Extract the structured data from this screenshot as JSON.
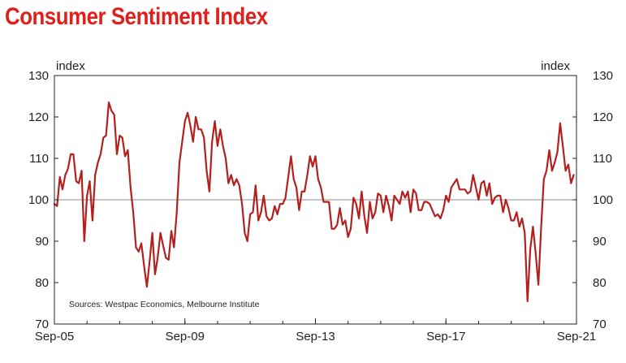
{
  "title": "Consumer Sentiment Index",
  "colors": {
    "title": "#e0201b",
    "line": "#b3201e",
    "refline": "#8c8c8c",
    "axis": "#222222"
  },
  "chart_data": {
    "type": "line",
    "title": "Consumer Sentiment Index",
    "ylabel_left": "index",
    "ylabel_right": "index",
    "ylim": [
      70,
      130
    ],
    "yticks": [
      70,
      80,
      90,
      100,
      110,
      120,
      130
    ],
    "xlim": [
      2005.667,
      2021.667
    ],
    "xticks": [
      {
        "label": "Sep-05",
        "x": 2005.667
      },
      {
        "label": "Sep-09",
        "x": 2009.667
      },
      {
        "label": "Sep-13",
        "x": 2013.667
      },
      {
        "label": "Sep-17",
        "x": 2017.667
      },
      {
        "label": "Sep-21",
        "x": 2021.667
      }
    ],
    "reference_line": 100,
    "source": "Sources: Westpac Economics, Melbourne Institute",
    "series": [
      {
        "name": "Consumer Sentiment Index",
        "points": [
          [
            2005.667,
            99
          ],
          [
            2005.75,
            98.5
          ],
          [
            2005.833,
            105.5
          ],
          [
            2005.917,
            102.5
          ],
          [
            2006.0,
            106
          ],
          [
            2006.083,
            107.5
          ],
          [
            2006.167,
            111
          ],
          [
            2006.25,
            111
          ],
          [
            2006.333,
            104.5
          ],
          [
            2006.417,
            104
          ],
          [
            2006.5,
            107
          ],
          [
            2006.583,
            90
          ],
          [
            2006.667,
            101
          ],
          [
            2006.75,
            104.5
          ],
          [
            2006.833,
            95
          ],
          [
            2006.917,
            106
          ],
          [
            2007.0,
            109
          ],
          [
            2007.083,
            111
          ],
          [
            2007.167,
            115
          ],
          [
            2007.25,
            115.5
          ],
          [
            2007.333,
            123.5
          ],
          [
            2007.417,
            121.5
          ],
          [
            2007.5,
            120.5
          ],
          [
            2007.583,
            111
          ],
          [
            2007.667,
            115.5
          ],
          [
            2007.75,
            115
          ],
          [
            2007.833,
            110.5
          ],
          [
            2007.917,
            112
          ],
          [
            2008.0,
            103
          ],
          [
            2008.083,
            97
          ],
          [
            2008.167,
            88.5
          ],
          [
            2008.25,
            87.5
          ],
          [
            2008.333,
            89.5
          ],
          [
            2008.417,
            84
          ],
          [
            2008.5,
            79
          ],
          [
            2008.583,
            85
          ],
          [
            2008.667,
            92
          ],
          [
            2008.75,
            82
          ],
          [
            2008.833,
            86
          ],
          [
            2008.917,
            92
          ],
          [
            2009.0,
            89
          ],
          [
            2009.083,
            86
          ],
          [
            2009.167,
            85.5
          ],
          [
            2009.25,
            92.5
          ],
          [
            2009.333,
            88.5
          ],
          [
            2009.417,
            97
          ],
          [
            2009.5,
            109
          ],
          [
            2009.583,
            114
          ],
          [
            2009.667,
            119
          ],
          [
            2009.75,
            121
          ],
          [
            2009.833,
            118
          ],
          [
            2009.917,
            114
          ],
          [
            2010.0,
            120
          ],
          [
            2010.083,
            117
          ],
          [
            2010.167,
            117
          ],
          [
            2010.25,
            115
          ],
          [
            2010.333,
            107
          ],
          [
            2010.417,
            102
          ],
          [
            2010.5,
            114
          ],
          [
            2010.583,
            119
          ],
          [
            2010.667,
            113
          ],
          [
            2010.75,
            117
          ],
          [
            2010.833,
            113
          ],
          [
            2010.917,
            110
          ],
          [
            2011.0,
            104
          ],
          [
            2011.083,
            106
          ],
          [
            2011.167,
            103.5
          ],
          [
            2011.25,
            105
          ],
          [
            2011.333,
            103.5
          ],
          [
            2011.417,
            99
          ],
          [
            2011.5,
            92
          ],
          [
            2011.583,
            90
          ],
          [
            2011.667,
            96.5
          ],
          [
            2011.75,
            97
          ],
          [
            2011.833,
            103.5
          ],
          [
            2011.917,
            95
          ],
          [
            2012.0,
            97
          ],
          [
            2012.083,
            101
          ],
          [
            2012.167,
            96
          ],
          [
            2012.25,
            95
          ],
          [
            2012.333,
            95.5
          ],
          [
            2012.417,
            98.5
          ],
          [
            2012.5,
            96.5
          ],
          [
            2012.583,
            99
          ],
          [
            2012.667,
            99
          ],
          [
            2012.75,
            100.5
          ],
          [
            2012.833,
            105.5
          ],
          [
            2012.917,
            110.5
          ],
          [
            2013.0,
            105
          ],
          [
            2013.083,
            103
          ],
          [
            2013.167,
            97.5
          ],
          [
            2013.25,
            102
          ],
          [
            2013.333,
            102
          ],
          [
            2013.417,
            106
          ],
          [
            2013.5,
            110.5
          ],
          [
            2013.583,
            108
          ],
          [
            2013.667,
            110.5
          ],
          [
            2013.75,
            105
          ],
          [
            2013.833,
            103
          ],
          [
            2013.917,
            99.5
          ],
          [
            2014.0,
            99.5
          ],
          [
            2014.083,
            99.5
          ],
          [
            2014.167,
            93
          ],
          [
            2014.25,
            93
          ],
          [
            2014.333,
            94
          ],
          [
            2014.417,
            98
          ],
          [
            2014.5,
            94
          ],
          [
            2014.583,
            95
          ],
          [
            2014.667,
            91
          ],
          [
            2014.75,
            93
          ],
          [
            2014.833,
            100.5
          ],
          [
            2014.917,
            99
          ],
          [
            2015.0,
            95.5
          ],
          [
            2015.083,
            102
          ],
          [
            2015.167,
            96
          ],
          [
            2015.25,
            92
          ],
          [
            2015.333,
            99.5
          ],
          [
            2015.417,
            95.5
          ],
          [
            2015.5,
            97
          ],
          [
            2015.583,
            101.5
          ],
          [
            2015.667,
            101
          ],
          [
            2015.75,
            97
          ],
          [
            2015.833,
            101
          ],
          [
            2015.917,
            98.5
          ],
          [
            2016.0,
            95
          ],
          [
            2016.083,
            101
          ],
          [
            2016.167,
            100
          ],
          [
            2016.25,
            99
          ],
          [
            2016.333,
            102
          ],
          [
            2016.417,
            100.5
          ],
          [
            2016.5,
            102
          ],
          [
            2016.583,
            97
          ],
          [
            2016.667,
            102.5
          ],
          [
            2016.75,
            101.5
          ],
          [
            2016.833,
            97.5
          ],
          [
            2016.917,
            97.5
          ],
          [
            2017.0,
            99.5
          ],
          [
            2017.083,
            99.5
          ],
          [
            2017.167,
            99
          ],
          [
            2017.25,
            97.5
          ],
          [
            2017.333,
            96
          ],
          [
            2017.417,
            96.5
          ],
          [
            2017.5,
            95.5
          ],
          [
            2017.583,
            97.5
          ],
          [
            2017.667,
            101
          ],
          [
            2017.75,
            99.5
          ],
          [
            2017.833,
            103
          ],
          [
            2017.917,
            104
          ],
          [
            2018.0,
            105
          ],
          [
            2018.083,
            102.5
          ],
          [
            2018.167,
            102.5
          ],
          [
            2018.25,
            102.5
          ],
          [
            2018.333,
            101.5
          ],
          [
            2018.417,
            102
          ],
          [
            2018.5,
            106
          ],
          [
            2018.583,
            103
          ],
          [
            2018.667,
            100
          ],
          [
            2018.75,
            104
          ],
          [
            2018.833,
            104.5
          ],
          [
            2018.917,
            101
          ],
          [
            2019.0,
            104
          ],
          [
            2019.083,
            99
          ],
          [
            2019.167,
            100.5
          ],
          [
            2019.25,
            101
          ],
          [
            2019.333,
            101
          ],
          [
            2019.417,
            97
          ],
          [
            2019.5,
            100
          ],
          [
            2019.583,
            98
          ],
          [
            2019.667,
            95
          ],
          [
            2019.75,
            95
          ],
          [
            2019.833,
            97
          ],
          [
            2019.917,
            93.5
          ],
          [
            2020.0,
            95.5
          ],
          [
            2020.083,
            92
          ],
          [
            2020.167,
            75.5
          ],
          [
            2020.25,
            88
          ],
          [
            2020.333,
            93.5
          ],
          [
            2020.417,
            87
          ],
          [
            2020.5,
            79.5
          ],
          [
            2020.583,
            93
          ],
          [
            2020.667,
            105
          ],
          [
            2020.75,
            107
          ],
          [
            2020.833,
            112
          ],
          [
            2020.917,
            107
          ],
          [
            2021.0,
            109
          ],
          [
            2021.083,
            111.5
          ],
          [
            2021.167,
            118.5
          ],
          [
            2021.25,
            113
          ],
          [
            2021.333,
            107
          ],
          [
            2021.417,
            108.5
          ],
          [
            2021.5,
            104
          ],
          [
            2021.583,
            106
          ]
        ]
      }
    ]
  }
}
